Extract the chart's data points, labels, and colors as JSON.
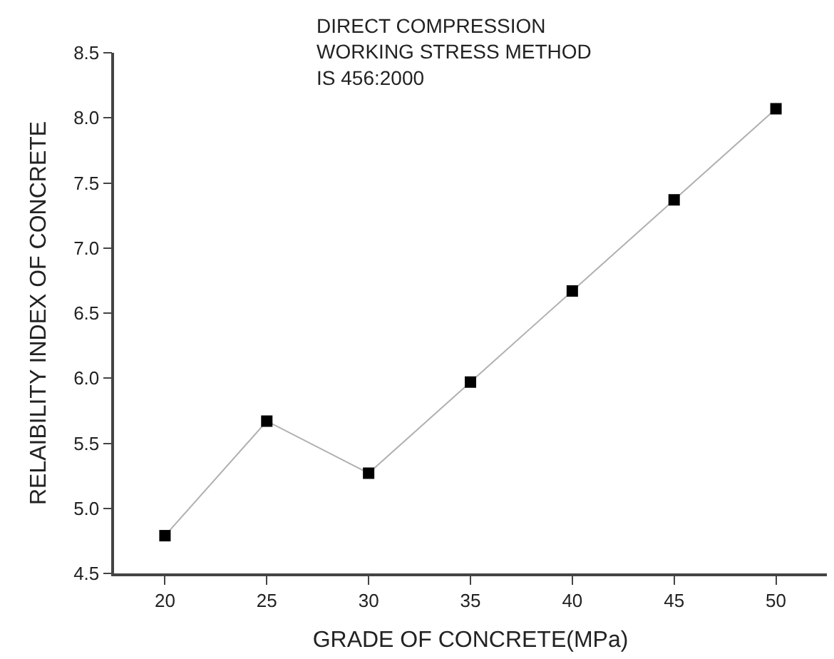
{
  "chart_data": {
    "type": "line",
    "title": "DIRECT COMPRESSION\nWORKING STRESS METHOD\nIS 456:2000",
    "xlabel": "GRADE OF CONCRETE(MPa)",
    "ylabel": "RELAIBILITY INDEX OF CONCRETE",
    "x": [
      20,
      25,
      30,
      35,
      40,
      45,
      50
    ],
    "series": [
      {
        "color": "#000000",
        "values": [
          4.79,
          5.67,
          5.27,
          5.97,
          6.67,
          7.37,
          8.07
        ]
      }
    ],
    "xlim": [
      17.5,
      52.5
    ],
    "xticks": [
      20,
      25,
      30,
      35,
      40,
      45,
      50
    ],
    "ylim": [
      4.5,
      8.5
    ],
    "yticks": [
      {
        "value": 4.5,
        "label": "4.5"
      },
      {
        "value": 5,
        "label": "5.0"
      },
      {
        "value": 5.5,
        "label": "5.5"
      },
      {
        "value": 6,
        "label": "6.0"
      },
      {
        "value": 6.5,
        "label": "6.5"
      },
      {
        "value": 7,
        "label": "7.0"
      },
      {
        "value": 7.5,
        "label": "7.5"
      },
      {
        "value": 8,
        "label": "8.0"
      },
      {
        "value": 8.5,
        "label": "8.5"
      }
    ],
    "marker": "square",
    "line_style": "solid"
  }
}
